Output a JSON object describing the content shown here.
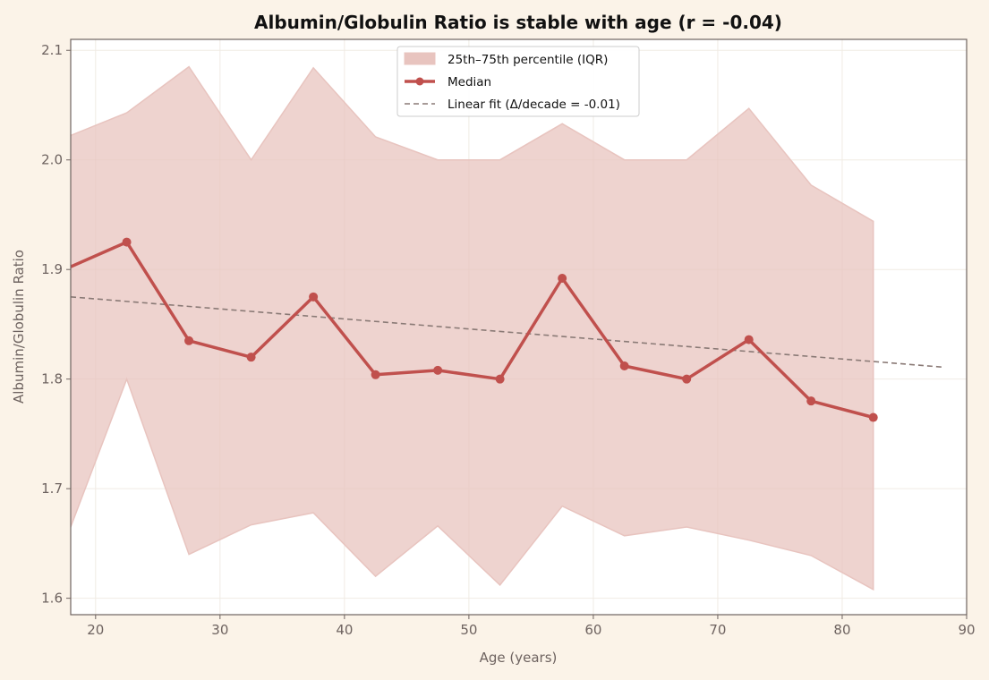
{
  "chart_data": {
    "type": "line",
    "title": "Albumin/Globulin Ratio is stable with age (r = -0.04)",
    "xlabel": "Age (years)",
    "ylabel": "Albumin/Globulin Ratio",
    "xlim": [
      18,
      90
    ],
    "ylim": [
      1.585,
      2.11
    ],
    "xticks": [
      20,
      30,
      40,
      50,
      60,
      70,
      80,
      90
    ],
    "xtick_labels": [
      "20",
      "30",
      "40",
      "50",
      "60",
      "70",
      "80",
      "90"
    ],
    "yticks": [
      1.6,
      1.7,
      1.8,
      1.9,
      2.0,
      2.1
    ],
    "ytick_labels": [
      "1.6",
      "1.7",
      "1.8",
      "1.9",
      "2.0",
      "2.1"
    ],
    "grid": true,
    "legend_position": "top-center",
    "x": [
      17.5,
      22.5,
      27.5,
      32.5,
      37.5,
      42.5,
      47.5,
      52.5,
      57.5,
      62.5,
      67.5,
      72.5,
      77.5,
      82.5
    ],
    "iqr_band": {
      "label": "25th–75th percentile (IQR)",
      "color": "#e8c4bf",
      "lower": [
        1.65,
        1.8,
        1.64,
        1.667,
        1.678,
        1.62,
        1.666,
        1.612,
        1.684,
        1.657,
        1.665,
        1.653,
        1.639,
        1.608
      ],
      "upper": [
        2.02,
        2.043,
        2.085,
        2.0,
        2.084,
        2.021,
        2.0,
        2.0,
        2.033,
        2.0,
        2.0,
        2.047,
        1.977,
        1.944
      ]
    },
    "median": {
      "label": "Median",
      "color": "#c0504d",
      "values": [
        1.9,
        1.925,
        1.835,
        1.82,
        1.875,
        1.804,
        1.808,
        1.8,
        1.892,
        1.812,
        1.8,
        1.836,
        1.78,
        1.765
      ]
    },
    "fit": {
      "label": "Linear fit (Δ/decade = -0.01)",
      "color": "#8a7a76",
      "x": [
        18,
        88
      ],
      "y": [
        1.875,
        1.811
      ]
    }
  }
}
